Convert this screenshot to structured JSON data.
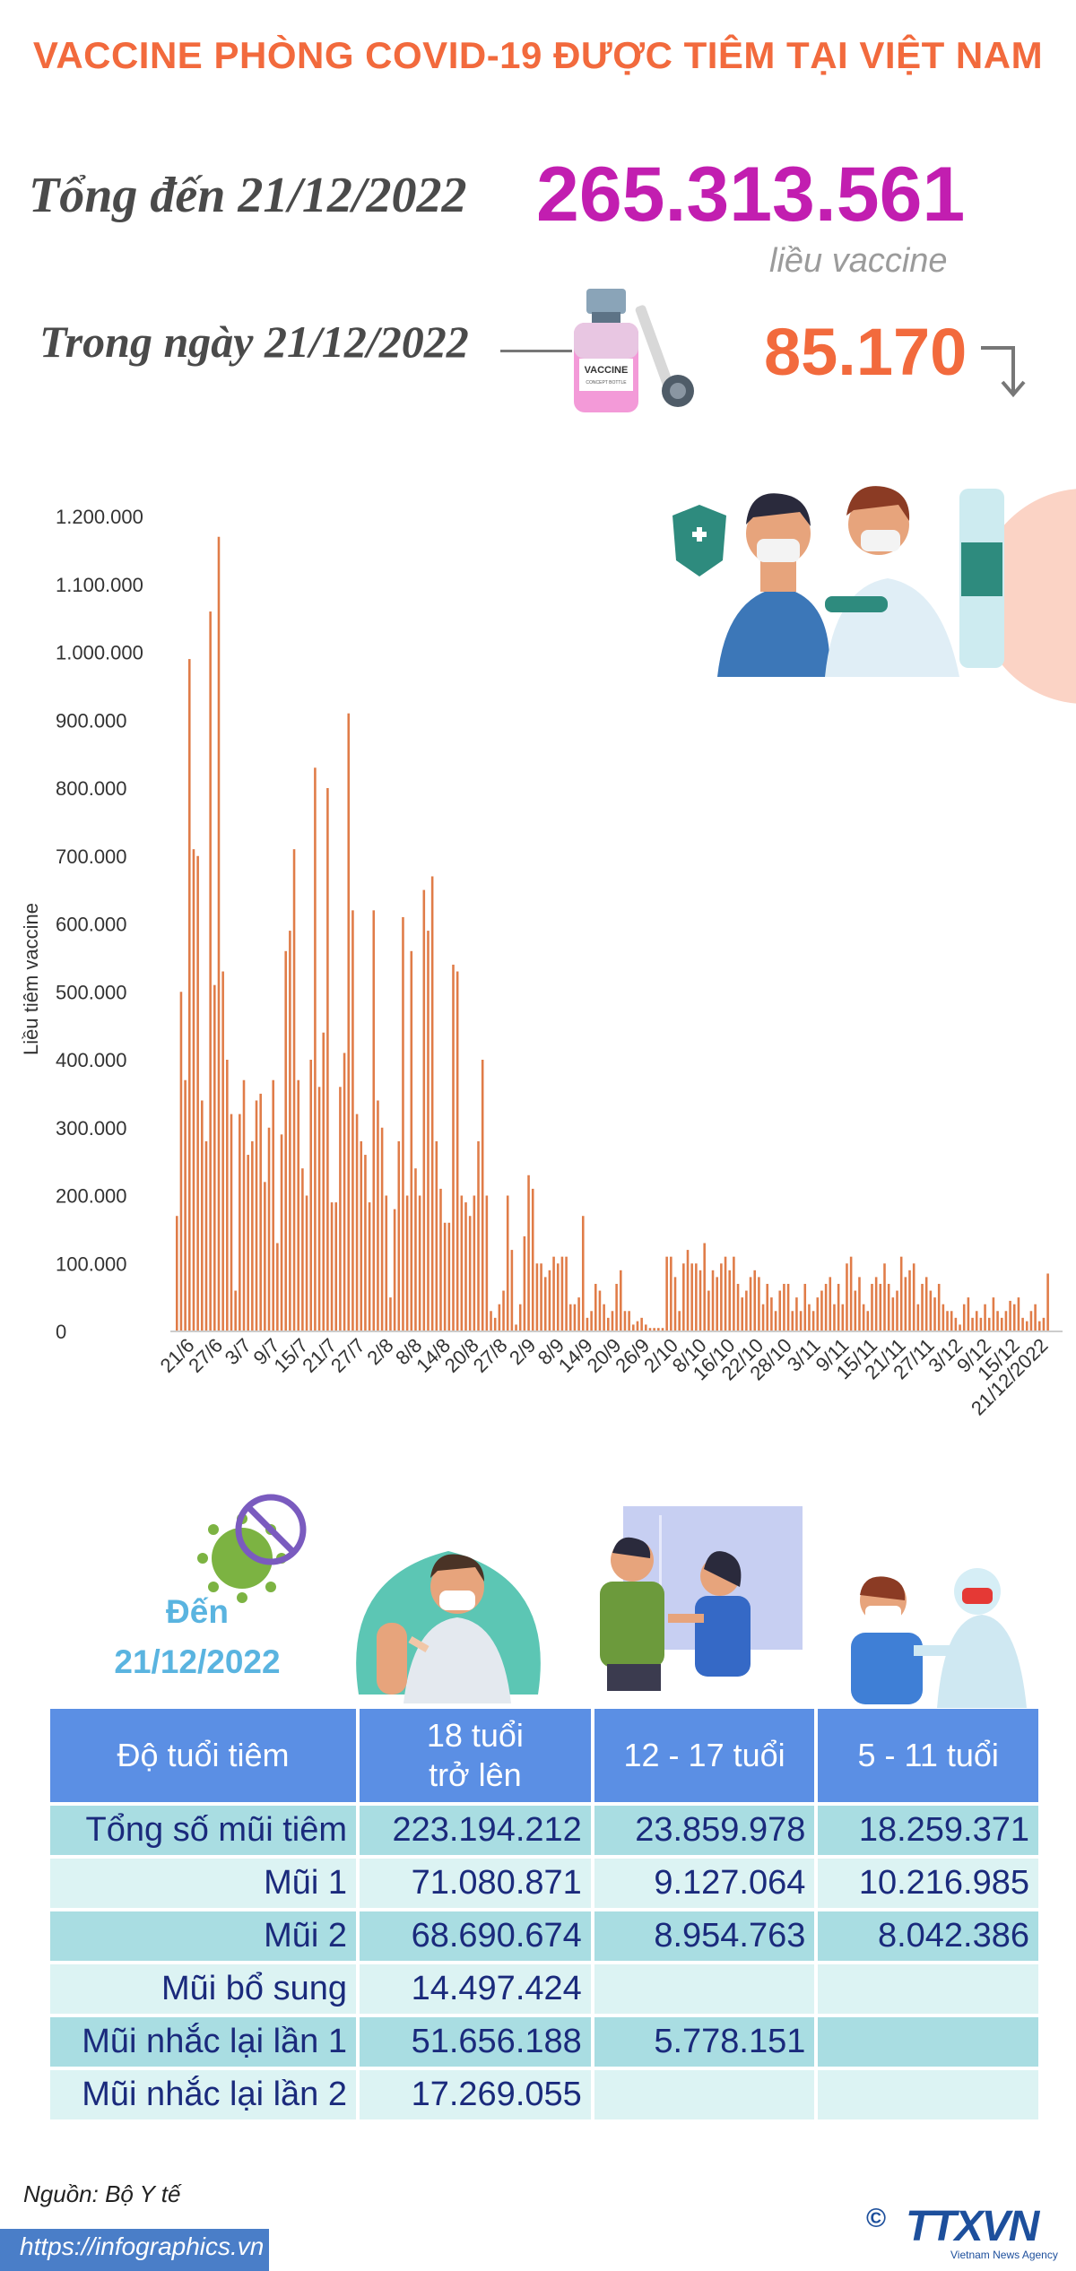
{
  "header": {
    "title": "VACCINE PHÒNG COVID-19 ĐƯỢC TIÊM TẠI VIỆT NAM",
    "total_label": "Tổng đến 21/12/2022",
    "total_value": "265.313.561",
    "total_unit": "liều vaccine",
    "day_label": "Trong ngày 21/12/2022",
    "day_value": "85.170",
    "vial_text": "VACCINE",
    "vial_subtext": "CONCEPT BOTTLE"
  },
  "colors": {
    "title": "#f26a3d",
    "total": "#c21eb0",
    "bars": "#e07c48",
    "table_header": "#5b8fe4",
    "row_dark": "#a9dde2",
    "row_light": "#dcf3f3",
    "text_dark": "#1a2a7c",
    "date_label": "#5ab4e0"
  },
  "chart_data": {
    "type": "bar",
    "ylabel": "Liều tiêm vaccine",
    "ylim": [
      0,
      1200000
    ],
    "yticks": [
      "1.200.000",
      "1.100.000",
      "1.000.000",
      "900.000",
      "800.000",
      "700.000",
      "600.000",
      "500.000",
      "400.000",
      "300.000",
      "200.000",
      "100.000",
      "0"
    ],
    "xticks": [
      "21/6",
      "27/6",
      "3/7",
      "9/7",
      "15/7",
      "21/7",
      "27/7",
      "2/8",
      "8/8",
      "14/8",
      "20/8",
      "27/8",
      "2/9",
      "8/9",
      "14/9",
      "20/9",
      "26/9",
      "2/10",
      "8/10",
      "16/10",
      "22/10",
      "28/10",
      "3/11",
      "9/11",
      "15/11",
      "21/11",
      "27/11",
      "3/12",
      "9/12",
      "15/12",
      "21/12/2022"
    ],
    "values": [
      170000,
      500000,
      370000,
      990000,
      710000,
      700000,
      340000,
      280000,
      1060000,
      510000,
      1170000,
      530000,
      400000,
      320000,
      60000,
      320000,
      370000,
      260000,
      280000,
      340000,
      350000,
      220000,
      300000,
      370000,
      130000,
      290000,
      560000,
      590000,
      710000,
      370000,
      240000,
      200000,
      400000,
      830000,
      360000,
      440000,
      800000,
      190000,
      190000,
      360000,
      410000,
      910000,
      620000,
      320000,
      280000,
      260000,
      190000,
      620000,
      340000,
      300000,
      200000,
      50000,
      180000,
      280000,
      610000,
      200000,
      560000,
      240000,
      200000,
      650000,
      590000,
      670000,
      280000,
      210000,
      160000,
      160000,
      540000,
      530000,
      200000,
      190000,
      170000,
      200000,
      280000,
      400000,
      200000,
      30000,
      20000,
      40000,
      60000,
      200000,
      120000,
      10000,
      40000,
      140000,
      230000,
      210000,
      100000,
      100000,
      80000,
      90000,
      110000,
      100000,
      110000,
      110000,
      40000,
      40000,
      50000,
      170000,
      20000,
      30000,
      70000,
      60000,
      40000,
      20000,
      30000,
      70000,
      90000,
      30000,
      30000,
      10000,
      15000,
      20000,
      10000,
      5000,
      5000,
      5000,
      5000,
      110000,
      110000,
      80000,
      30000,
      100000,
      120000,
      100000,
      100000,
      90000,
      130000,
      60000,
      90000,
      80000,
      100000,
      110000,
      90000,
      110000,
      70000,
      50000,
      60000,
      80000,
      90000,
      80000,
      40000,
      70000,
      50000,
      30000,
      60000,
      70000,
      70000,
      30000,
      50000,
      30000,
      70000,
      40000,
      30000,
      50000,
      60000,
      70000,
      80000,
      40000,
      70000,
      40000,
      100000,
      110000,
      60000,
      80000,
      40000,
      30000,
      70000,
      80000,
      70000,
      100000,
      70000,
      50000,
      60000,
      110000,
      80000,
      90000,
      100000,
      40000,
      70000,
      80000,
      60000,
      50000,
      70000,
      40000,
      30000,
      30000,
      20000,
      10000,
      40000,
      50000,
      20000,
      30000,
      20000,
      40000,
      20000,
      50000,
      30000,
      20000,
      30000,
      45000,
      40000,
      50000,
      20000,
      15000,
      30000,
      40000,
      15000,
      20000,
      85170
    ]
  },
  "table": {
    "date_label_1": "Đến",
    "date_label_2": "21/12/2022",
    "headers": [
      "Độ tuổi tiêm",
      "18 tuổi\ntrở lên",
      "12 - 17 tuổi",
      "5 - 11 tuổi"
    ],
    "rows": [
      [
        "Tổng số mũi tiêm",
        "223.194.212",
        "23.859.978",
        "18.259.371"
      ],
      [
        "Mũi 1",
        "71.080.871",
        "9.127.064",
        "10.216.985"
      ],
      [
        "Mũi 2",
        "68.690.674",
        "8.954.763",
        "8.042.386"
      ],
      [
        "Mũi bổ sung",
        "14.497.424",
        "",
        ""
      ],
      [
        "Mũi nhắc lại lần 1",
        "51.656.188",
        "5.778.151",
        ""
      ],
      [
        "Mũi nhắc lại lần 2",
        "17.269.055",
        "",
        ""
      ]
    ]
  },
  "footer": {
    "source": "Nguồn: Bộ Y tế",
    "url": "https://infographics.vn",
    "brand": "TTXVN",
    "brand_sub": "Vietnam News Agency",
    "copyright": "©"
  }
}
